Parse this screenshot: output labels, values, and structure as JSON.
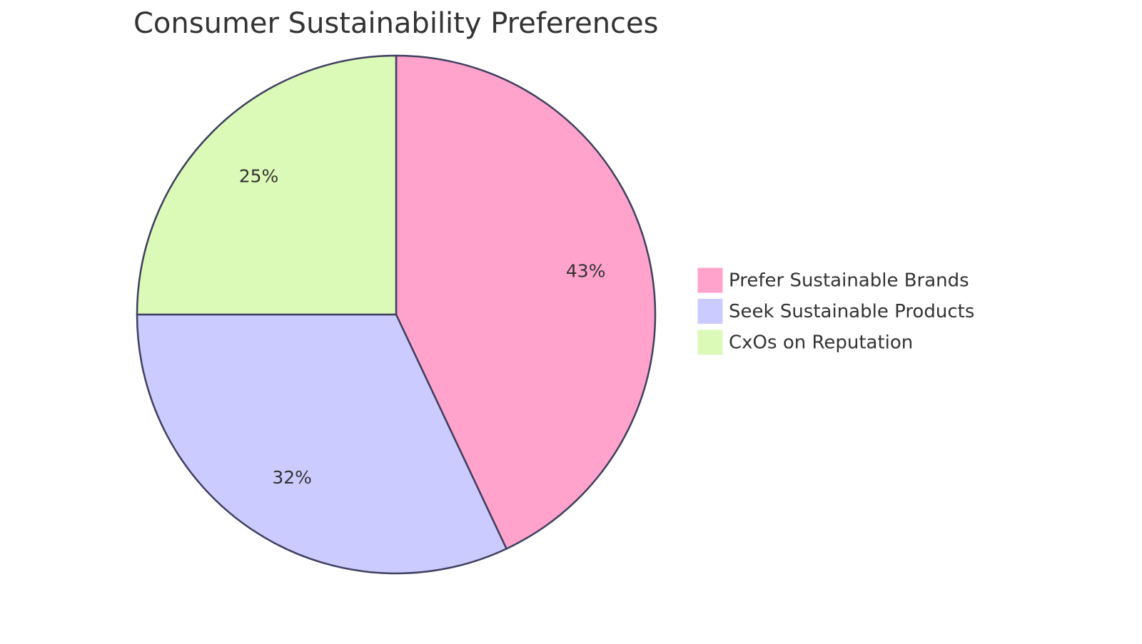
{
  "chart_data": {
    "type": "pie",
    "title": "Consumer Sustainability Preferences",
    "categories": [
      "Prefer Sustainable Brands",
      "Seek Sustainable Products",
      "CxOs on Reputation"
    ],
    "values": [
      43,
      32,
      25
    ],
    "value_labels": [
      "43%",
      "32%",
      "25%"
    ],
    "colors": [
      "#ffa3cc",
      "#cbcbff",
      "#dbfab8"
    ],
    "legend": "right"
  }
}
